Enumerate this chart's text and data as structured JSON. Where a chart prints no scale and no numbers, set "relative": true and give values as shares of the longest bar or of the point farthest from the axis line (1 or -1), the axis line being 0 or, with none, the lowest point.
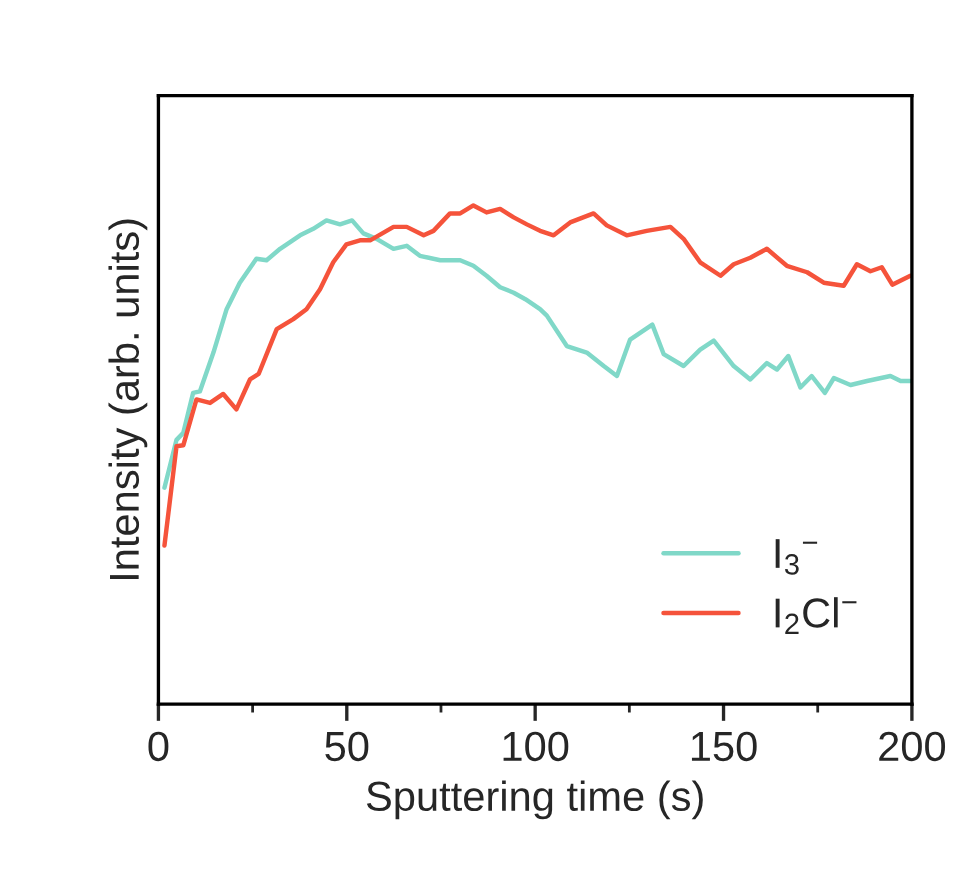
{
  "chart_data": {
    "type": "line",
    "relative": true,
    "xlabel": "Sputtering time (s)",
    "ylabel": "Intensity (arb. units)",
    "xlim": [
      0,
      200
    ],
    "xticks": [
      0,
      {
        "value": 25,
        "label": null
      },
      50,
      {
        "value": 75,
        "label": null
      },
      100,
      {
        "value": 125,
        "label": null
      },
      150,
      {
        "value": 175,
        "label": null
      },
      200
    ],
    "tick_labels": "x",
    "grid": false,
    "legend": "bottom right",
    "marker": "none",
    "line_style": "solid",
    "series": [
      {
        "name": "I$_{3}$$^{−}$",
        "color": "#80d8c8",
        "x": [
          1.6,
          4.8,
          6.6,
          9.2,
          11.0,
          14.6,
          18.1,
          21.6,
          26.0,
          28.7,
          32.3,
          37.6,
          41.1,
          44.6,
          48.2,
          51.4,
          54.4,
          57.9,
          62.4,
          65.9,
          69.4,
          74.8,
          80.1,
          83.6,
          87.1,
          90.7,
          94.3,
          97.4,
          101.3,
          103.1,
          108.4,
          113.7,
          118.2,
          121.7,
          125.2,
          131.1,
          134.1,
          139.4,
          143.8,
          147.4,
          152.7,
          157.1,
          161.5,
          164.2,
          167.2,
          170.4,
          173.4,
          176.9,
          179.3,
          183.7,
          188.1,
          194.3,
          197.0,
          199.6
        ],
        "values": [
          0.434,
          0.53,
          0.544,
          0.624,
          0.627,
          0.705,
          0.792,
          0.845,
          0.893,
          0.89,
          0.913,
          0.94,
          0.953,
          0.97,
          0.962,
          0.97,
          0.944,
          0.933,
          0.913,
          0.919,
          0.899,
          0.89,
          0.89,
          0.879,
          0.859,
          0.836,
          0.825,
          0.812,
          0.792,
          0.779,
          0.718,
          0.705,
          0.678,
          0.658,
          0.731,
          0.761,
          0.702,
          0.678,
          0.711,
          0.729,
          0.678,
          0.651,
          0.684,
          0.671,
          0.698,
          0.635,
          0.658,
          0.624,
          0.654,
          0.64,
          0.648,
          0.658,
          0.648,
          0.648
        ]
      },
      {
        "name": "I$_{2}$Cl$^{−}$",
        "color": "#f5533b",
        "x": [
          1.6,
          4.8,
          6.6,
          10.1,
          13.7,
          17.2,
          20.7,
          24.3,
          26.6,
          31.4,
          35.8,
          39.3,
          42.9,
          46.4,
          49.9,
          53.5,
          56.2,
          62.4,
          65.9,
          70.4,
          73.0,
          77.4,
          80.1,
          83.6,
          87.1,
          90.7,
          94.3,
          97.8,
          101.3,
          104.9,
          109.3,
          115.5,
          119.0,
          124.3,
          129.6,
          135.9,
          139.4,
          143.8,
          149.2,
          152.7,
          157.1,
          161.5,
          166.8,
          172.2,
          176.6,
          181.9,
          185.4,
          189.0,
          192.0,
          194.8,
          199.6
        ],
        "values": [
          0.318,
          0.517,
          0.519,
          0.611,
          0.604,
          0.622,
          0.591,
          0.651,
          0.662,
          0.752,
          0.772,
          0.792,
          0.832,
          0.886,
          0.922,
          0.93,
          0.93,
          0.957,
          0.957,
          0.94,
          0.949,
          0.984,
          0.984,
          1.0,
          0.986,
          0.993,
          0.976,
          0.962,
          0.949,
          0.94,
          0.966,
          0.984,
          0.96,
          0.94,
          0.949,
          0.957,
          0.933,
          0.886,
          0.859,
          0.882,
          0.895,
          0.913,
          0.879,
          0.866,
          0.845,
          0.839,
          0.882,
          0.868,
          0.876,
          0.841,
          0.859
        ]
      }
    ]
  }
}
